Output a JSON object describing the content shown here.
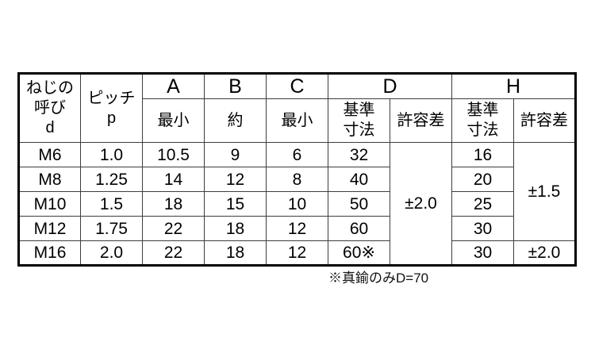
{
  "colors": {
    "background": "#ffffff",
    "text": "#000000",
    "outer_border": "#000000",
    "grid_line": "#3d3d3d"
  },
  "table": {
    "header": {
      "screw_lines": [
        "ねじの",
        "呼び",
        "d"
      ],
      "pitch_lines": [
        "ピッチ",
        "p"
      ],
      "cols": [
        "A",
        "B",
        "C",
        "D",
        "H"
      ],
      "sub": {
        "a": "最小",
        "b": "約",
        "c": "最小",
        "basic_lines": [
          "基準",
          "寸法"
        ],
        "tolerance": "許容差"
      }
    },
    "rows": [
      {
        "name": "M6",
        "pitch": "1.0",
        "a": "10.5",
        "b": "9",
        "c": "6",
        "d_basic": "32",
        "h_basic": "16"
      },
      {
        "name": "M8",
        "pitch": "1.25",
        "a": "14",
        "b": "12",
        "c": "8",
        "d_basic": "40",
        "h_basic": "20"
      },
      {
        "name": "M10",
        "pitch": "1.5",
        "a": "18",
        "b": "15",
        "c": "10",
        "d_basic": "50",
        "h_basic": "25"
      },
      {
        "name": "M12",
        "pitch": "1.75",
        "a": "22",
        "b": "18",
        "c": "12",
        "d_basic": "60",
        "h_basic": "30"
      },
      {
        "name": "M16",
        "pitch": "2.0",
        "a": "22",
        "b": "18",
        "c": "12",
        "d_basic": "60※",
        "h_basic": "30"
      }
    ],
    "merged": {
      "d_tolerance_all": "±2.0",
      "h_tolerance_m6_to_m12": "±1.5",
      "h_tolerance_m16": "±2.0"
    }
  },
  "footnote": {
    "text": "※真鍮のみD=70"
  }
}
